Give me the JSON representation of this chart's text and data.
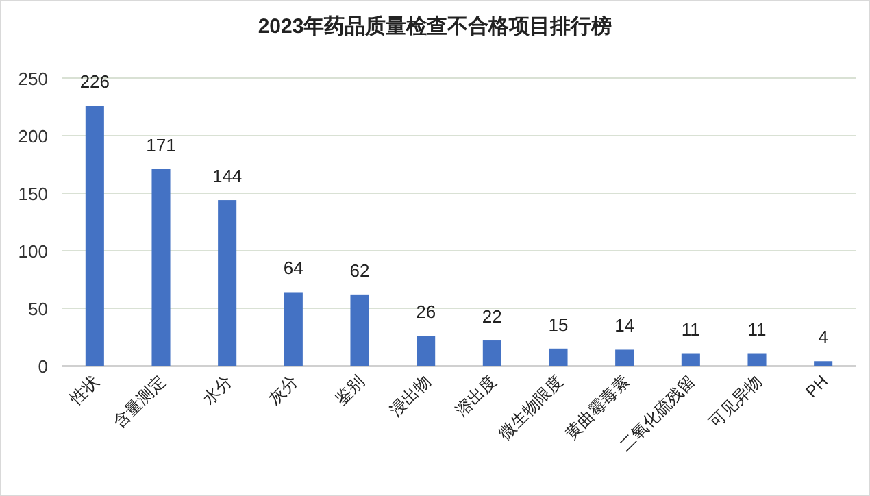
{
  "chart_data": {
    "type": "bar",
    "title": "2023年药品质量检查不合格项目排行榜",
    "categories": [
      "性状",
      "含量测定",
      "水分",
      "灰分",
      "鉴别",
      "浸出物",
      "溶出度",
      "微生物限度",
      "黄曲霉毒素",
      "二氧化硫残留",
      "可见异物",
      "PH"
    ],
    "values": [
      226,
      171,
      144,
      64,
      62,
      26,
      22,
      15,
      14,
      11,
      11,
      4
    ],
    "color": "#4472c4",
    "ylim": [
      0,
      250
    ],
    "yticks": [
      0,
      50,
      100,
      150,
      200,
      250
    ],
    "grid": "y",
    "data_labels": true
  }
}
